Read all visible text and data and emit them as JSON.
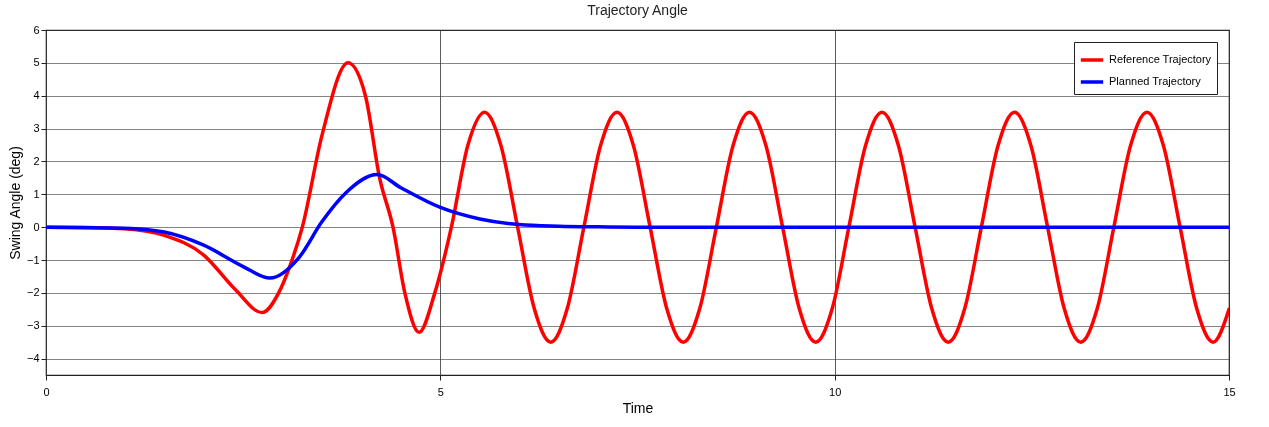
{
  "chart_data": {
    "type": "line",
    "title": "Trajectory Angle",
    "xlabel": "Time",
    "ylabel": "Swing Angle (deg)",
    "xlim": [
      0,
      15
    ],
    "xticks": [
      0,
      5,
      10,
      15
    ],
    "ylim": [
      -4.5,
      6
    ],
    "yticks": [
      -4,
      -3,
      -2,
      -1,
      0,
      1,
      2,
      3,
      4,
      5,
      6
    ],
    "grid": true,
    "legend": "top right",
    "line_style": "solid",
    "marker": "none",
    "series": [
      {
        "name": "Reference Trajectory",
        "color": "#ff0000",
        "x": [
          0,
          0.5,
          1,
          1.5,
          2,
          2.4,
          2.74,
          2.95,
          3.09,
          3.25,
          3.5,
          3.83,
          4.05,
          4.23,
          4.4,
          4.55,
          4.73,
          4.93,
          5.14,
          5.35,
          5.56,
          5.77,
          5.98,
          6.19,
          6.4,
          6.61,
          6.82,
          7.03,
          7.24,
          7.45,
          7.66,
          7.87,
          8.08,
          8.29,
          8.5,
          8.71,
          8.92,
          9.13,
          9.34,
          9.55,
          9.76,
          9.97,
          10.18,
          10.39,
          10.6,
          10.81,
          11.02,
          11.23,
          11.44,
          11.65,
          11.86,
          12.07,
          12.28,
          12.49,
          12.7,
          12.91,
          13.12,
          13.33,
          13.54,
          13.75,
          13.96,
          14.17,
          14.38,
          14.59,
          14.8,
          15
        ],
        "values": [
          0,
          -0.01,
          -0.05,
          -0.25,
          -0.85,
          -1.9,
          -2.6,
          -2.0,
          -1.2,
          0,
          2.8,
          5,
          4.0,
          1.5,
          0,
          -2.0,
          -3.2,
          -2.0,
          0,
          2.5,
          3.5,
          2.47,
          0,
          -2.47,
          -3.5,
          -2.47,
          0,
          2.47,
          3.5,
          2.47,
          0,
          -2.47,
          -3.5,
          -2.47,
          0,
          2.47,
          3.5,
          2.47,
          0,
          -2.47,
          -3.5,
          -2.47,
          0,
          2.47,
          3.5,
          2.47,
          0,
          -2.47,
          -3.5,
          -2.47,
          0,
          2.47,
          3.5,
          2.47,
          0,
          -2.47,
          -3.5,
          -2.47,
          0,
          2.47,
          3.5,
          2.47,
          0,
          -2.47,
          -3.5,
          -2.5
        ]
      },
      {
        "name": "Planned Trajectory",
        "color": "#0000ff",
        "x": [
          0,
          1,
          1.5,
          2,
          2.5,
          2.84,
          3.2,
          3.5,
          3.8,
          4.2,
          4.5,
          5,
          5.5,
          6,
          6.5,
          7,
          7.5,
          15
        ],
        "values": [
          0,
          -0.03,
          -0.15,
          -0.55,
          -1.2,
          -1.55,
          -0.95,
          0.17,
          1.04,
          1.6,
          1.2,
          0.6,
          0.25,
          0.08,
          0.03,
          0.01,
          0,
          0
        ]
      }
    ]
  }
}
